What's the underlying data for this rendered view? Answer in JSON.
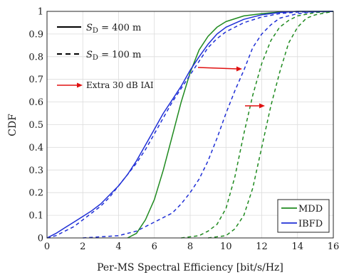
{
  "chart_data": {
    "type": "line",
    "xlabel": "Per-MS Spectral Efficiency [bit/s/Hz]",
    "ylabel": "CDF",
    "xlim": [
      0,
      16
    ],
    "ylim": [
      0,
      1
    ],
    "x_ticks": [
      "0",
      "2",
      "4",
      "6",
      "8",
      "10",
      "12",
      "14",
      "16"
    ],
    "y_ticks": [
      "0",
      "0.1",
      "0.2",
      "0.3",
      "0.4",
      "0.5",
      "0.6",
      "0.7",
      "0.8",
      "0.9",
      "1"
    ],
    "grid": true,
    "legend_placement": "bottom-right",
    "legend": [
      {
        "label": "MDD",
        "color": "#1f8a1f"
      },
      {
        "label": "IBFD",
        "color": "#1f2fd6"
      }
    ],
    "annotations": {
      "solid_line_label": "S_D = 400 m",
      "dashed_line_label": "S_D = 100 m",
      "arrow_label": "Extra 30 dB IAI",
      "arrow_color": "#e01010"
    },
    "series": [
      {
        "name": "MDD",
        "label": "S_D = 400 m",
        "color": "#1f8a1f",
        "dash": "solid",
        "points": [
          [
            4.5,
            0.0
          ],
          [
            5.0,
            0.02
          ],
          [
            5.5,
            0.08
          ],
          [
            6.0,
            0.17
          ],
          [
            6.5,
            0.3
          ],
          [
            7.0,
            0.45
          ],
          [
            7.5,
            0.6
          ],
          [
            8.0,
            0.73
          ],
          [
            8.5,
            0.83
          ],
          [
            9.0,
            0.89
          ],
          [
            9.5,
            0.93
          ],
          [
            10.0,
            0.955
          ],
          [
            11.0,
            0.98
          ],
          [
            12.0,
            0.99
          ],
          [
            13.0,
            0.997
          ],
          [
            14.0,
            1.0
          ],
          [
            16.0,
            1.0
          ]
        ]
      },
      {
        "name": "IBFD",
        "label": "S_D = 400 m",
        "color": "#1f2fd6",
        "dash": "solid",
        "points": [
          [
            0.0,
            0.0
          ],
          [
            0.5,
            0.02
          ],
          [
            1.0,
            0.045
          ],
          [
            1.5,
            0.07
          ],
          [
            2.0,
            0.095
          ],
          [
            2.5,
            0.12
          ],
          [
            3.0,
            0.15
          ],
          [
            3.5,
            0.19
          ],
          [
            4.0,
            0.23
          ],
          [
            4.5,
            0.28
          ],
          [
            5.0,
            0.34
          ],
          [
            5.5,
            0.41
          ],
          [
            6.0,
            0.48
          ],
          [
            6.5,
            0.55
          ],
          [
            7.0,
            0.61
          ],
          [
            7.5,
            0.67
          ],
          [
            8.0,
            0.74
          ],
          [
            8.5,
            0.8
          ],
          [
            9.0,
            0.855
          ],
          [
            9.5,
            0.9
          ],
          [
            10.0,
            0.93
          ],
          [
            11.0,
            0.965
          ],
          [
            12.0,
            0.985
          ],
          [
            13.0,
            0.995
          ],
          [
            14.0,
            1.0
          ],
          [
            16.0,
            1.0
          ]
        ]
      },
      {
        "name": "MDD",
        "label": "S_D = 100 m",
        "color": "#1f8a1f",
        "dash": "dashed",
        "points": [
          [
            7.5,
            0.0
          ],
          [
            8.5,
            0.01
          ],
          [
            9.0,
            0.03
          ],
          [
            9.5,
            0.06
          ],
          [
            10.0,
            0.13
          ],
          [
            10.5,
            0.27
          ],
          [
            11.0,
            0.46
          ],
          [
            11.5,
            0.63
          ],
          [
            12.0,
            0.77
          ],
          [
            12.5,
            0.87
          ],
          [
            13.0,
            0.93
          ],
          [
            13.5,
            0.96
          ],
          [
            14.0,
            0.98
          ],
          [
            15.0,
            0.995
          ],
          [
            16.0,
            1.0
          ]
        ]
      },
      {
        "name": "MDD",
        "label": "Extra 30 dB IAI",
        "color": "#1f8a1f",
        "dash": "dashed",
        "points": [
          [
            9.0,
            0.0
          ],
          [
            10.0,
            0.01
          ],
          [
            10.5,
            0.04
          ],
          [
            11.0,
            0.1
          ],
          [
            11.5,
            0.22
          ],
          [
            12.0,
            0.4
          ],
          [
            12.5,
            0.58
          ],
          [
            13.0,
            0.73
          ],
          [
            13.5,
            0.86
          ],
          [
            14.0,
            0.93
          ],
          [
            14.5,
            0.97
          ],
          [
            15.0,
            0.985
          ],
          [
            16.0,
            1.0
          ]
        ]
      },
      {
        "name": "IBFD",
        "label": "S_D = 100 m",
        "color": "#1f2fd6",
        "dash": "dashed",
        "points": [
          [
            0.0,
            0.0
          ],
          [
            0.5,
            0.01
          ],
          [
            1.0,
            0.03
          ],
          [
            1.5,
            0.05
          ],
          [
            2.0,
            0.08
          ],
          [
            2.5,
            0.11
          ],
          [
            3.0,
            0.14
          ],
          [
            3.5,
            0.18
          ],
          [
            4.0,
            0.23
          ],
          [
            4.5,
            0.28
          ],
          [
            5.0,
            0.33
          ],
          [
            5.5,
            0.39
          ],
          [
            6.0,
            0.46
          ],
          [
            6.5,
            0.53
          ],
          [
            7.0,
            0.6
          ],
          [
            7.5,
            0.66
          ],
          [
            8.0,
            0.72
          ],
          [
            8.5,
            0.78
          ],
          [
            9.0,
            0.84
          ],
          [
            9.5,
            0.88
          ],
          [
            10.0,
            0.91
          ],
          [
            11.0,
            0.95
          ],
          [
            12.0,
            0.975
          ],
          [
            13.0,
            0.99
          ],
          [
            14.0,
            0.997
          ],
          [
            16.0,
            1.0
          ]
        ]
      },
      {
        "name": "IBFD",
        "label": "Extra 30 dB IAI",
        "color": "#1f2fd6",
        "dash": "dashed",
        "points": [
          [
            2.0,
            0.0
          ],
          [
            3.0,
            0.005
          ],
          [
            4.0,
            0.01
          ],
          [
            5.0,
            0.03
          ],
          [
            6.0,
            0.07
          ],
          [
            7.0,
            0.11
          ],
          [
            7.5,
            0.15
          ],
          [
            8.0,
            0.2
          ],
          [
            8.5,
            0.26
          ],
          [
            9.0,
            0.34
          ],
          [
            9.5,
            0.44
          ],
          [
            10.0,
            0.55
          ],
          [
            10.5,
            0.65
          ],
          [
            11.0,
            0.74
          ],
          [
            11.5,
            0.84
          ],
          [
            12.0,
            0.9
          ],
          [
            12.5,
            0.94
          ],
          [
            13.0,
            0.97
          ],
          [
            14.0,
            0.99
          ],
          [
            15.0,
            0.998
          ],
          [
            16.0,
            1.0
          ]
        ]
      }
    ]
  }
}
